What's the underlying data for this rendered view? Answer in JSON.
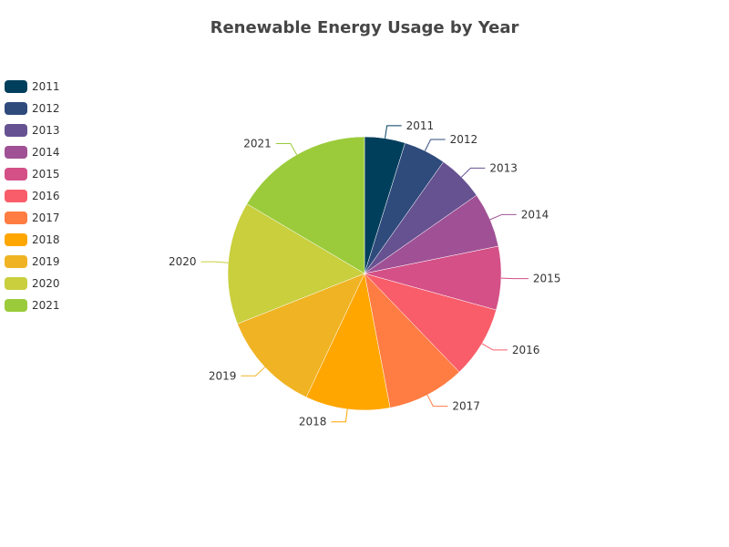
{
  "chart_data": {
    "type": "pie",
    "title": "Renewable Energy Usage by Year",
    "legend_position": "left",
    "categories": [
      "2011",
      "2012",
      "2013",
      "2014",
      "2015",
      "2016",
      "2017",
      "2018",
      "2019",
      "2020",
      "2021"
    ],
    "values": [
      4.8,
      5.0,
      5.5,
      6.5,
      7.5,
      8.5,
      9.2,
      10.0,
      12.0,
      14.5,
      16.5
    ],
    "colors": [
      "#003f5c",
      "#2f4b7c",
      "#665191",
      "#a05195",
      "#d45087",
      "#f95d6a",
      "#ff7c43",
      "#ffa600",
      "#f0b323",
      "#c9cf3d",
      "#9bcb3b"
    ]
  }
}
